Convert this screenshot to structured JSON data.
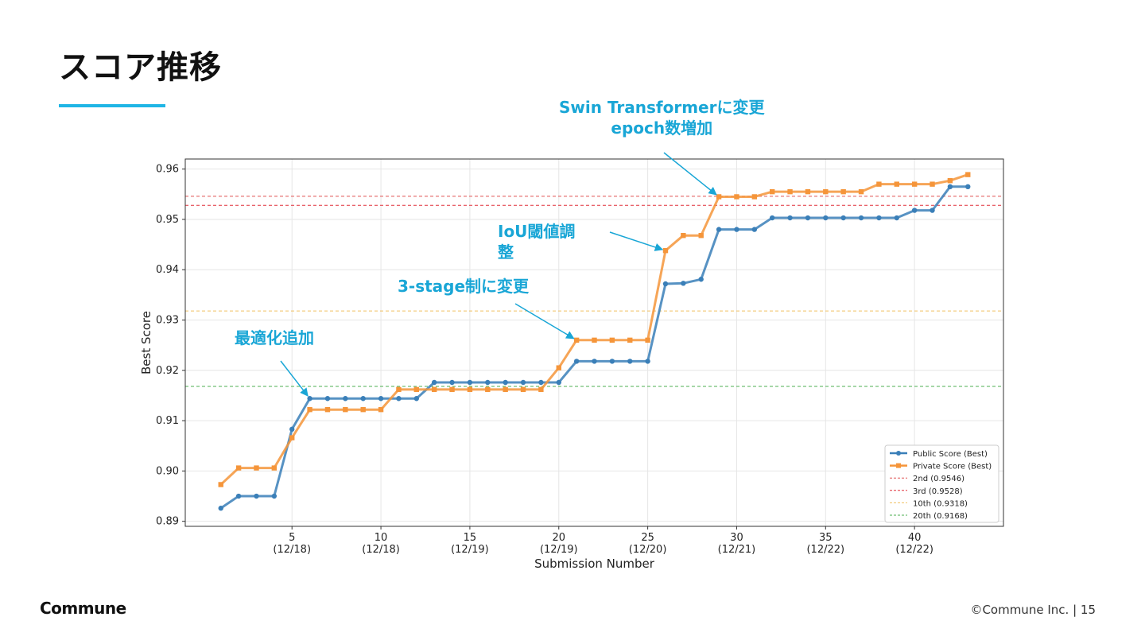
{
  "slide": {
    "title": "スコア推移",
    "brand": "Commune",
    "copyright": "©Commune Inc.",
    "page_separator": "|",
    "page_number": "15",
    "accent_color": "#1fb5e5",
    "annotation_color": "#19a6d6"
  },
  "annotations": [
    {
      "lines": [
        "Swin Transformerに変更",
        "epoch数増加"
      ],
      "points_to_submission": 29
    },
    {
      "lines": [
        "IoU閾値調",
        "整"
      ],
      "points_to_submission": 26
    },
    {
      "lines": [
        "3-stage制に変更"
      ],
      "points_to_submission": 21
    },
    {
      "lines": [
        "最適化追加"
      ],
      "points_to_submission": 6
    }
  ],
  "chart_data": {
    "type": "line",
    "title": "",
    "xlabel": "Submission Number",
    "ylabel": "Best Score",
    "xlim": [
      -1,
      45
    ],
    "ylim": [
      0.889,
      0.962
    ],
    "grid": true,
    "legend_position": "bottom-right",
    "x_ticks": [
      {
        "value": 5,
        "label": "5",
        "date": "(12/18)"
      },
      {
        "value": 10,
        "label": "10",
        "date": "(12/18)"
      },
      {
        "value": 15,
        "label": "15",
        "date": "(12/19)"
      },
      {
        "value": 20,
        "label": "20",
        "date": "(12/19)"
      },
      {
        "value": 25,
        "label": "25",
        "date": "(12/20)"
      },
      {
        "value": 30,
        "label": "30",
        "date": "(12/21)"
      },
      {
        "value": 35,
        "label": "35",
        "date": "(12/22)"
      },
      {
        "value": 40,
        "label": "40",
        "date": "(12/22)"
      }
    ],
    "y_ticks": [
      {
        "value": 0.89,
        "label": "0.89"
      },
      {
        "value": 0.9,
        "label": "0.90"
      },
      {
        "value": 0.91,
        "label": "0.91"
      },
      {
        "value": 0.92,
        "label": "0.92"
      },
      {
        "value": 0.93,
        "label": "0.93"
      },
      {
        "value": 0.94,
        "label": "0.94"
      },
      {
        "value": 0.95,
        "label": "0.95"
      },
      {
        "value": 0.96,
        "label": "0.96"
      }
    ],
    "x": [
      1,
      2,
      3,
      4,
      5,
      6,
      7,
      8,
      9,
      10,
      11,
      12,
      13,
      14,
      15,
      16,
      17,
      18,
      19,
      20,
      21,
      22,
      23,
      24,
      25,
      26,
      27,
      28,
      29,
      30,
      31,
      32,
      33,
      34,
      35,
      36,
      37,
      38,
      39,
      40,
      41,
      42,
      43
    ],
    "series": [
      {
        "name": "Public Score (Best)",
        "color": "#3a7fb8",
        "marker": "circle",
        "values": [
          0.8926,
          0.895,
          0.895,
          0.895,
          0.9083,
          0.9144,
          0.9144,
          0.9144,
          0.9144,
          0.9144,
          0.9144,
          0.9144,
          0.9176,
          0.9176,
          0.9176,
          0.9176,
          0.9176,
          0.9176,
          0.9176,
          0.9176,
          0.9218,
          0.9218,
          0.9218,
          0.9218,
          0.9218,
          0.9372,
          0.9373,
          0.9381,
          0.948,
          0.948,
          0.948,
          0.9503,
          0.9503,
          0.9503,
          0.9503,
          0.9503,
          0.9503,
          0.9503,
          0.9503,
          0.9518,
          0.9518,
          0.9565,
          0.9565
        ]
      },
      {
        "name": "Private Score (Best)",
        "color": "#f5953a",
        "marker": "square",
        "values": [
          0.8973,
          0.9006,
          0.9006,
          0.9006,
          0.9066,
          0.9122,
          0.9122,
          0.9122,
          0.9122,
          0.9122,
          0.9162,
          0.9162,
          0.9162,
          0.9162,
          0.9162,
          0.9162,
          0.9162,
          0.9162,
          0.9162,
          0.9205,
          0.926,
          0.926,
          0.926,
          0.926,
          0.926,
          0.9438,
          0.9468,
          0.9468,
          0.9545,
          0.9545,
          0.9545,
          0.9555,
          0.9555,
          0.9555,
          0.9555,
          0.9555,
          0.9555,
          0.957,
          0.957,
          0.957,
          0.957,
          0.9577,
          0.9589
        ]
      }
    ],
    "reference_lines": [
      {
        "name": "2nd (0.9546)",
        "value": 0.9546,
        "color": "#e05252"
      },
      {
        "name": "3rd (0.9528)",
        "value": 0.9528,
        "color": "#e0303a"
      },
      {
        "name": "10th (0.9318)",
        "value": 0.9318,
        "color": "#f0c060"
      },
      {
        "name": "20th (0.9168)",
        "value": 0.9168,
        "color": "#4caf50"
      }
    ]
  }
}
